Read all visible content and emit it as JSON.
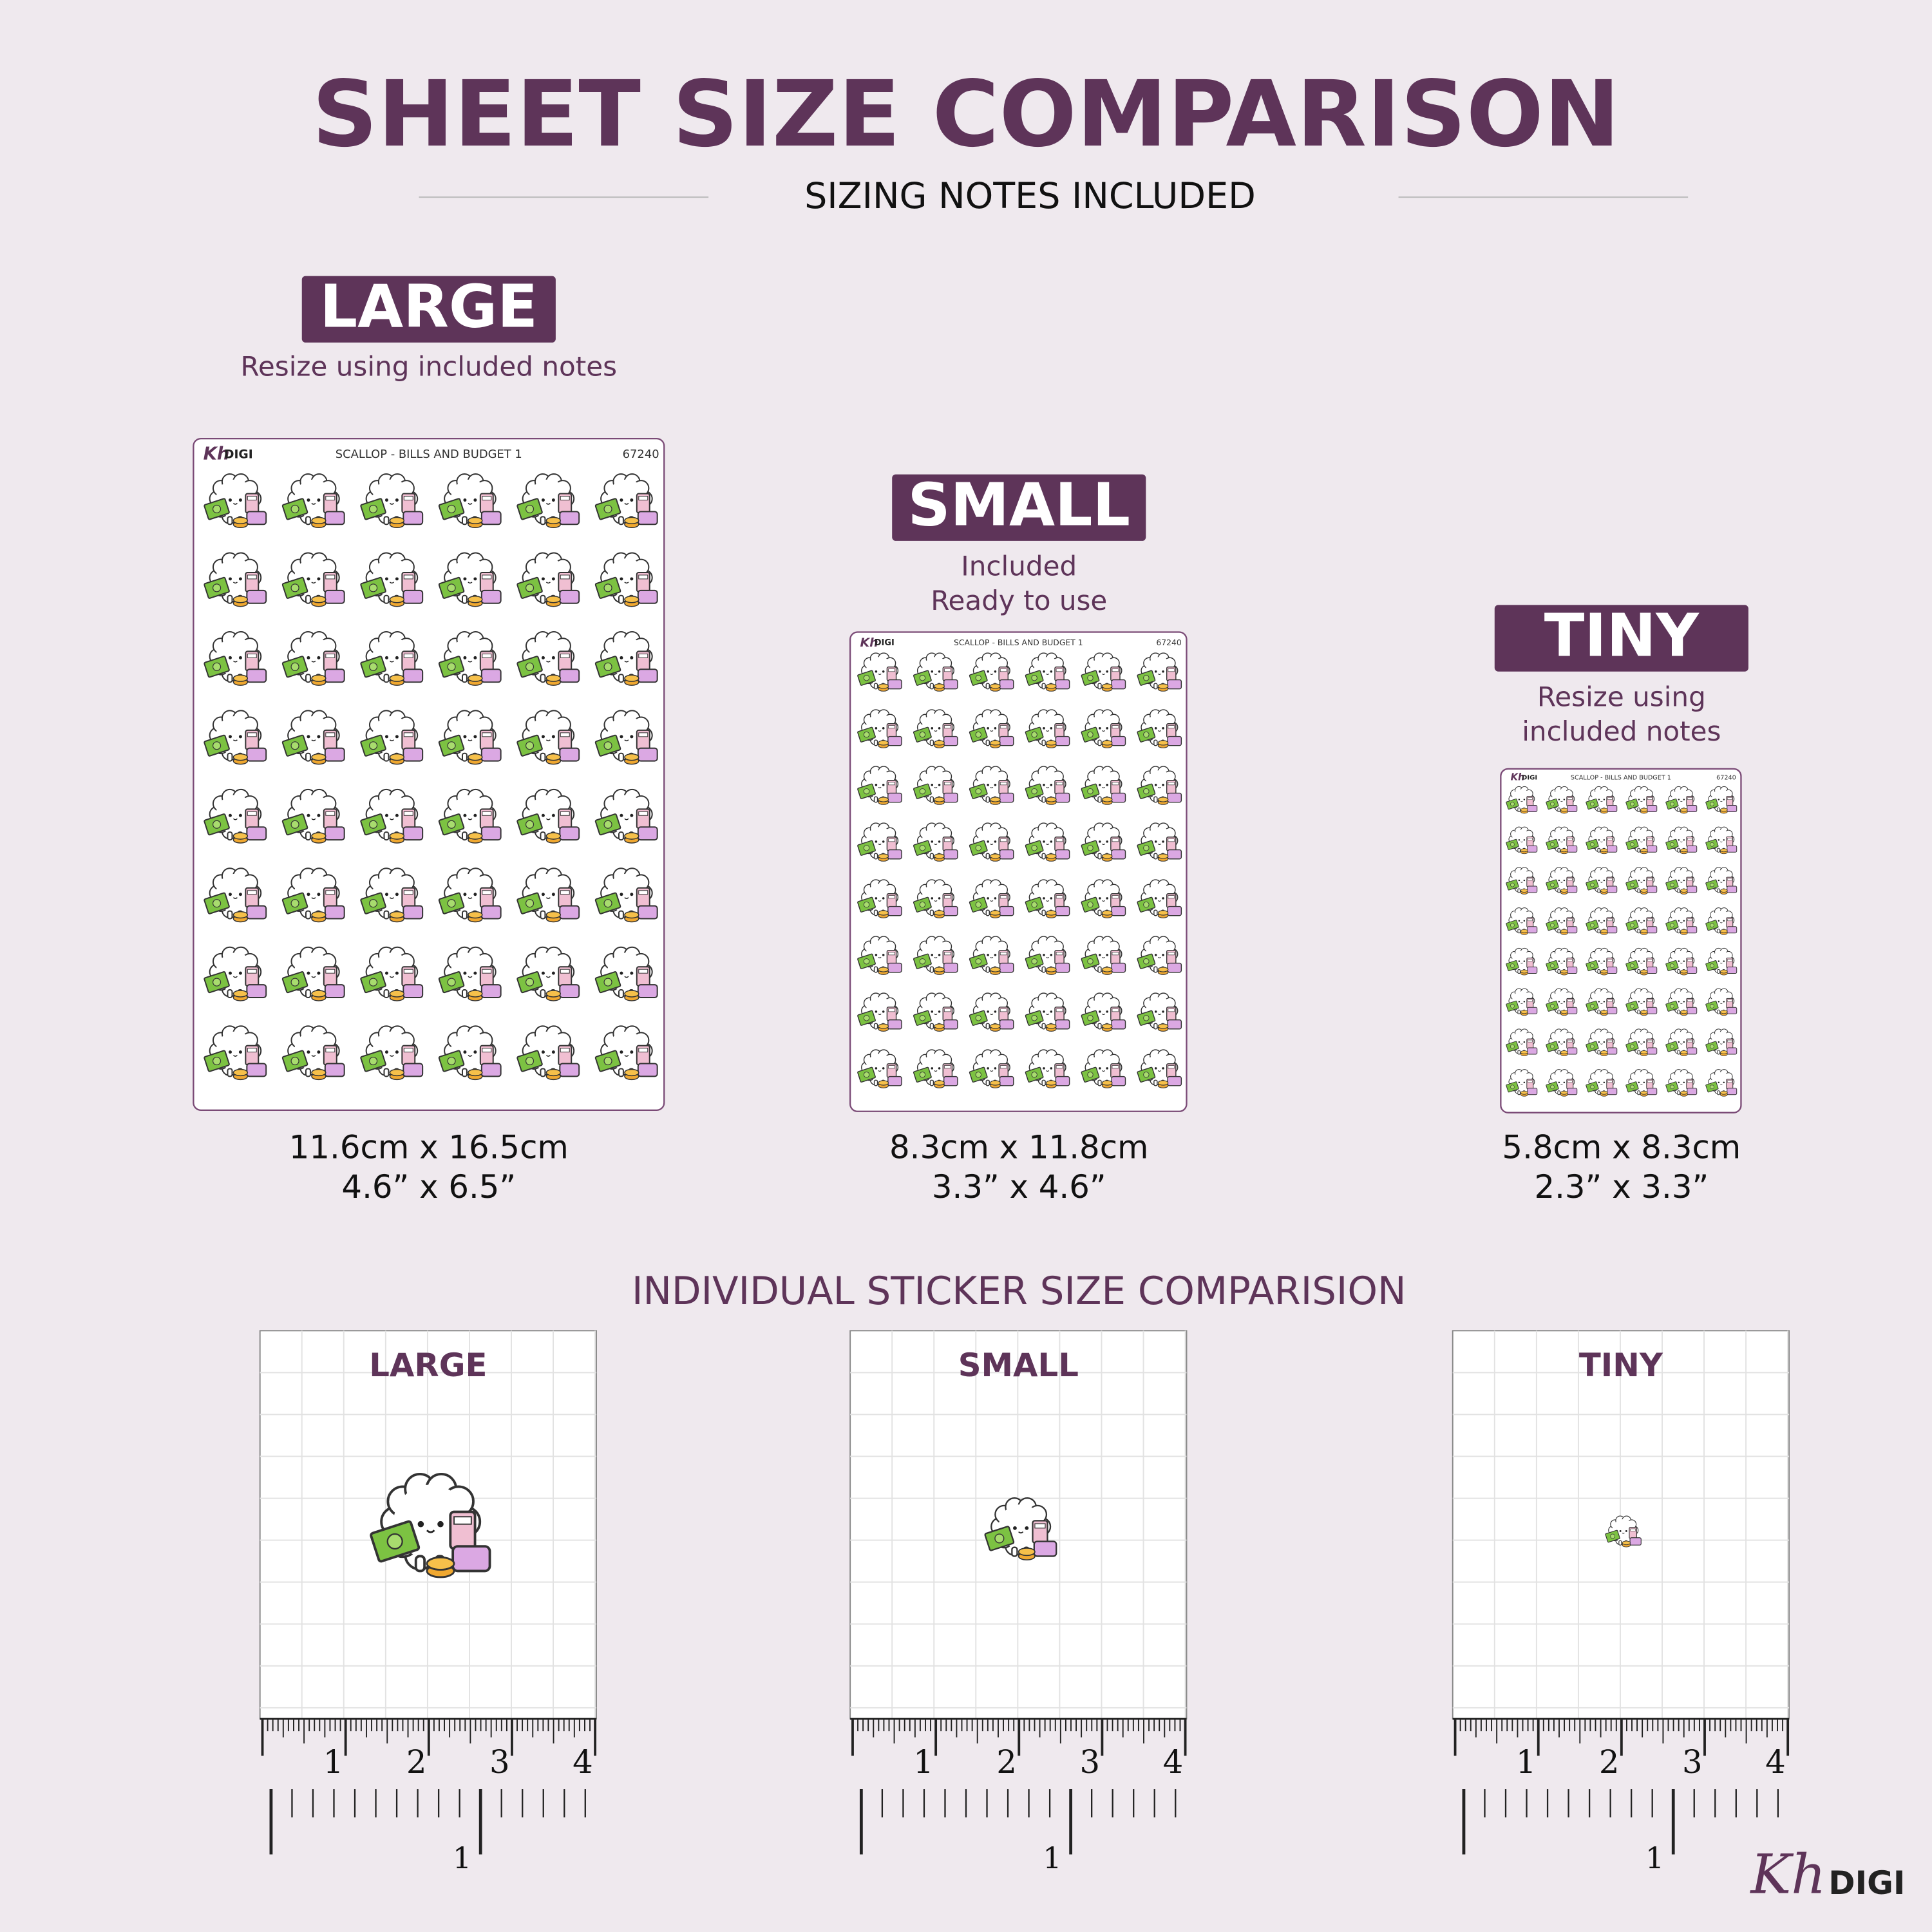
{
  "header": {
    "title": "SHEET SIZE COMPARISON",
    "subtitle": "SIZING NOTES INCLUDED"
  },
  "sheets": [
    {
      "size_label": "LARGE",
      "notes": [
        "Resize using included notes"
      ],
      "sheet_brand": {
        "mark": "Kh",
        "text": "DIGI"
      },
      "sheet_title": "SCALLOP - BILLS AND BUDGET 1",
      "sheet_code": "67240",
      "metric": "11.6cm x 16.5cm",
      "imperial": "4.6” x 6.5”"
    },
    {
      "size_label": "SMALL",
      "notes": [
        "Included",
        "Ready to use"
      ],
      "sheet_brand": {
        "mark": "Kh",
        "text": "DIGI"
      },
      "sheet_title": "SCALLOP - BILLS AND BUDGET 1",
      "sheet_code": "67240",
      "metric": "8.3cm x 11.8cm",
      "imperial": "3.3” x 4.6”"
    },
    {
      "size_label": "TINY",
      "notes": [
        "Resize using",
        "included notes"
      ],
      "sheet_brand": {
        "mark": "Kh",
        "text": "DIGI"
      },
      "sheet_title": "SCALLOP - BILLS AND BUDGET 1",
      "sheet_code": "67240",
      "metric": "5.8cm x 8.3cm",
      "imperial": "2.3” x 3.3”"
    }
  ],
  "individual": {
    "title": "INDIVIDUAL STICKER SIZE COMPARISION",
    "panels": [
      {
        "label": "LARGE",
        "inch_labels": [
          "1",
          "2",
          "3",
          "4"
        ],
        "cm_label": "1"
      },
      {
        "label": "SMALL",
        "inch_labels": [
          "1",
          "2",
          "3",
          "4"
        ],
        "cm_label": "1"
      },
      {
        "label": "TINY",
        "inch_labels": [
          "1",
          "2",
          "3",
          "4"
        ],
        "cm_label": "1"
      }
    ]
  },
  "logo": {
    "mark": "Kh",
    "text": "DIGI"
  }
}
